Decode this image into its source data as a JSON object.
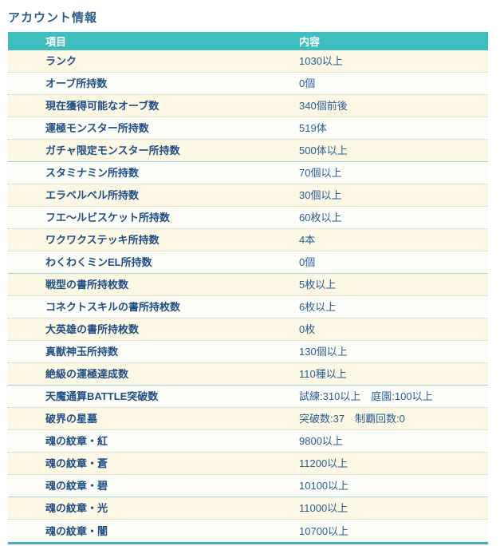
{
  "page": {
    "title": "アカウント情報"
  },
  "colors": {
    "header-bg": "#3EBEBE",
    "header-text": "#FFFFFF",
    "title-color": "#2B5D8C",
    "label-color": "#1F4E87",
    "value-color": "#2A5C9A",
    "row-odd-bg": "#FCF8E3",
    "row-even-bg": "#FEFEF8",
    "dotted-line": "#CFCBBB",
    "group-line": "#A5D3D7",
    "bottom-line": "#47A9BD"
  },
  "table": {
    "headers": {
      "item": "項目",
      "content": "内容"
    },
    "rows": [
      {
        "label": "ランク",
        "value": "1030以上"
      },
      {
        "label": "オーブ所持数",
        "value": "0個"
      },
      {
        "label": "現在獲得可能なオーブ数",
        "value": "340個前後"
      },
      {
        "label": "運極モンスター所持数",
        "value": "519体"
      },
      {
        "label": "ガチャ限定モンスター所持数",
        "value": "500体以上",
        "divider": true
      },
      {
        "label": "スタミナミン所持数",
        "value": "70個以上"
      },
      {
        "label": "エラベルベル所持数",
        "value": "30個以上"
      },
      {
        "label": "フエ～ルビスケット所持数",
        "value": "60枚以上"
      },
      {
        "label": "ワクワクステッキ所持数",
        "value": "4本"
      },
      {
        "label": "わくわくミンEL所持数",
        "value": "0個",
        "divider": true
      },
      {
        "label": "戦型の書所持枚数",
        "value": "5枚以上"
      },
      {
        "label": "コネクトスキルの書所持枚数",
        "value": "6枚以上"
      },
      {
        "label": "大英雄の書所持枚数",
        "value": "0枚"
      },
      {
        "label": "真獣神玉所持数",
        "value": "130個以上"
      },
      {
        "label": "絶級の運極達成数",
        "value": "110種以上",
        "divider": true
      },
      {
        "label": "天魔通算BATTLE突破数",
        "value": "試練:310以上　庭園:100以上"
      },
      {
        "label": "破界の星墓",
        "value": "突破数:37　制覇回数:0"
      },
      {
        "label": "魂の紋章・紅",
        "value": "9800以上"
      },
      {
        "label": "魂の紋章・蒼",
        "value": "11200以上"
      },
      {
        "label": "魂の紋章・碧",
        "value": "10100以上",
        "divider": true
      },
      {
        "label": "魂の紋章・光",
        "value": "11000以上"
      },
      {
        "label": "魂の紋章・闇",
        "value": "10700以上"
      }
    ]
  }
}
